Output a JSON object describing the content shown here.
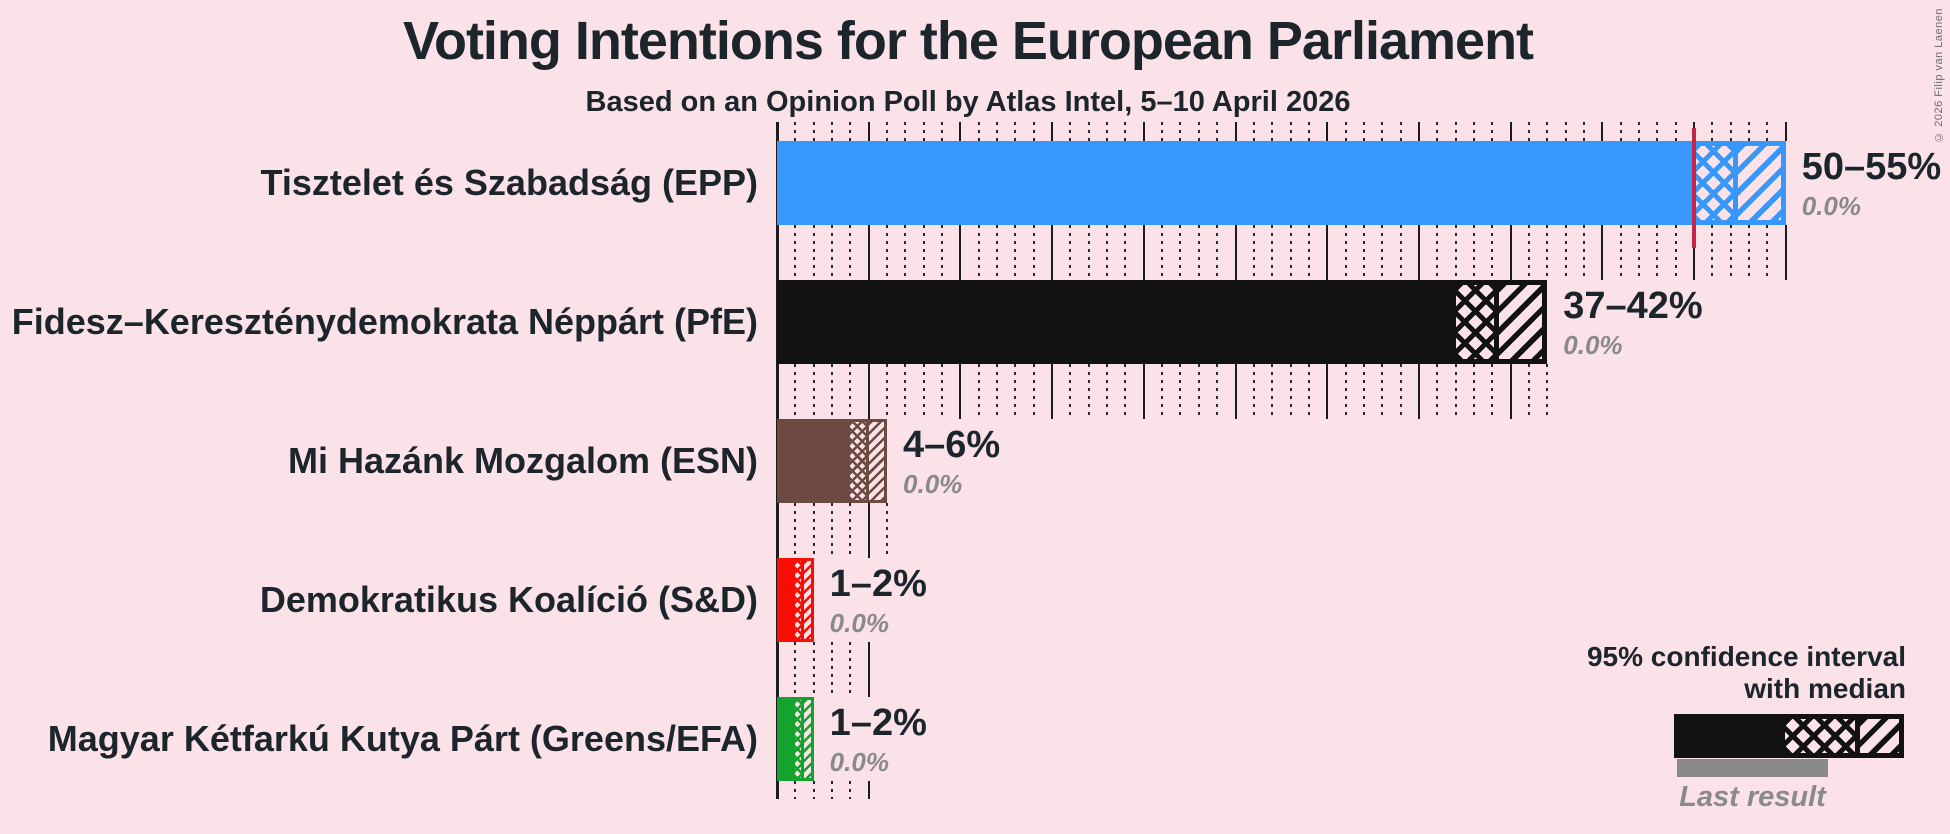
{
  "meta": {
    "copyright": "© 2026 Filip van Laenen",
    "background_color": "#fae2e8",
    "text_color": "#1c242c",
    "muted_color": "#8a8a8a",
    "majority_line_color": "#c42647"
  },
  "header": {
    "title": "Voting Intentions for the European Parliament",
    "subtitle": "Based on an Opinion Poll by Atlas Intel, 5–10 April 2026"
  },
  "chart_data": {
    "type": "bar",
    "orientation": "horizontal",
    "title": "Voting Intentions for the European Parliament",
    "subtitle": "Based on an Opinion Poll by Atlas Intel, 5–10 April 2026",
    "unit": "%",
    "x_axis": {
      "min": 0,
      "max": 55,
      "major_tick": 5,
      "minor_tick": 1,
      "grid": true
    },
    "majority_line": {
      "value": 50
    },
    "series": [
      {
        "party": "Tisztelet és Szabadság (EPP)",
        "ci_low": 50,
        "ci_median": 52.5,
        "ci_high": 55,
        "label": "50–55%",
        "last_result": 0.0,
        "last_result_label": "0.0%",
        "color": "#3897fa"
      },
      {
        "party": "Fidesz–Kereszténydemokrata Néppárt (PfE)",
        "ci_low": 37,
        "ci_median": 39.5,
        "ci_high": 42,
        "label": "37–42%",
        "last_result": 0.0,
        "last_result_label": "0.0%",
        "color": "#121212"
      },
      {
        "party": "Mi Hazánk Mozgalom (ESN)",
        "ci_low": 4,
        "ci_median": 5,
        "ci_high": 6,
        "label": "4–6%",
        "last_result": 0.0,
        "last_result_label": "0.0%",
        "color": "#6c4a41"
      },
      {
        "party": "Demokratikus Koalíció (S&D)",
        "ci_low": 1,
        "ci_median": 1.5,
        "ci_high": 2,
        "label": "1–2%",
        "last_result": 0.0,
        "last_result_label": "0.0%",
        "color": "#f70d04"
      },
      {
        "party": "Magyar Kétfarkú Kutya Párt (Greens/EFA)",
        "ci_low": 1,
        "ci_median": 1.5,
        "ci_high": 2,
        "label": "1–2%",
        "last_result": 0.0,
        "last_result_label": "0.0%",
        "color": "#16a22e"
      }
    ]
  },
  "legend": {
    "line1": "95% confidence interval",
    "line2": "with median",
    "sample_color": "#121212",
    "last_result_label": "Last result",
    "last_result_color": "#8a8a8a"
  }
}
